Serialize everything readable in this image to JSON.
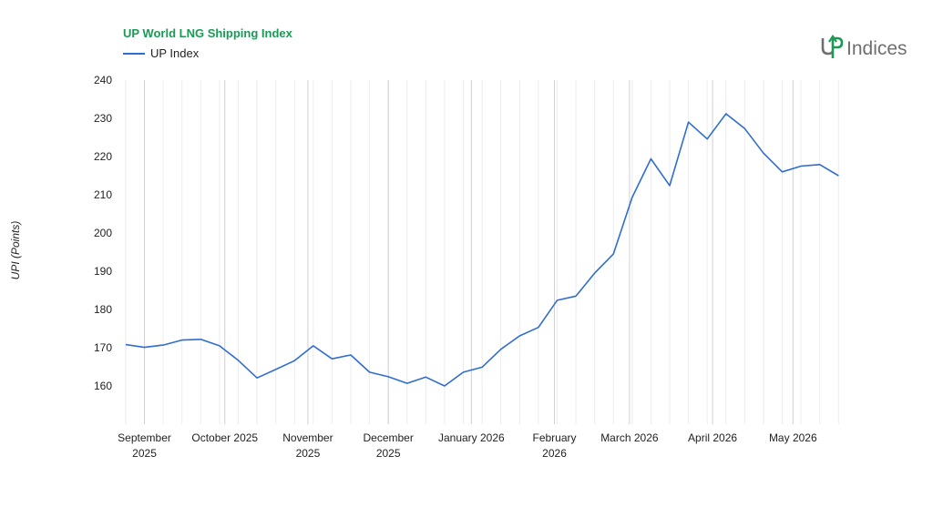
{
  "chart_data": {
    "type": "line",
    "title": "UP World LNG Shipping Index",
    "xlabel": "",
    "ylabel": "UPI (Points)",
    "ylim": [
      150,
      240
    ],
    "yticks": [
      160,
      170,
      180,
      190,
      200,
      210,
      220,
      230,
      240
    ],
    "grid": true,
    "legend": "top-left",
    "x_tick_labels": [
      {
        "date": "2025-09-01",
        "lines": [
          "September",
          "2025"
        ]
      },
      {
        "date": "2025-10-01",
        "lines": [
          "October 2025"
        ]
      },
      {
        "date": "2025-11-01",
        "lines": [
          "November",
          "2025"
        ]
      },
      {
        "date": "2025-12-01",
        "lines": [
          "December",
          "2025"
        ]
      },
      {
        "date": "2026-01-01",
        "lines": [
          "January 2026"
        ]
      },
      {
        "date": "2026-02-01",
        "lines": [
          "February",
          "2026"
        ]
      },
      {
        "date": "2026-03-01",
        "lines": [
          "March 2026"
        ]
      },
      {
        "date": "2026-04-01",
        "lines": [
          "April 2026"
        ]
      },
      {
        "date": "2026-05-01",
        "lines": [
          "May 2026"
        ]
      }
    ],
    "series": [
      {
        "name": "UP Index",
        "color": "#2f6dd0",
        "points": [
          {
            "x": "2025-08-25",
            "y": 170.8
          },
          {
            "x": "2025-09-01",
            "y": 170.1
          },
          {
            "x": "2025-09-08",
            "y": 170.7
          },
          {
            "x": "2025-09-15",
            "y": 172.0
          },
          {
            "x": "2025-09-22",
            "y": 172.2
          },
          {
            "x": "2025-09-29",
            "y": 170.5
          },
          {
            "x": "2025-10-06",
            "y": 166.7
          },
          {
            "x": "2025-10-13",
            "y": 162.1
          },
          {
            "x": "2025-10-20",
            "y": 164.3
          },
          {
            "x": "2025-10-27",
            "y": 166.6
          },
          {
            "x": "2025-11-03",
            "y": 170.5
          },
          {
            "x": "2025-11-10",
            "y": 167.1
          },
          {
            "x": "2025-11-17",
            "y": 168.1
          },
          {
            "x": "2025-11-24",
            "y": 163.6
          },
          {
            "x": "2025-12-01",
            "y": 162.4
          },
          {
            "x": "2025-12-08",
            "y": 160.7
          },
          {
            "x": "2025-12-15",
            "y": 162.3
          },
          {
            "x": "2025-12-22",
            "y": 160.0
          },
          {
            "x": "2025-12-29",
            "y": 163.6
          },
          {
            "x": "2026-01-05",
            "y": 164.9
          },
          {
            "x": "2026-01-12",
            "y": 169.6
          },
          {
            "x": "2026-01-19",
            "y": 173.1
          },
          {
            "x": "2026-01-26",
            "y": 175.3
          },
          {
            "x": "2026-02-02",
            "y": 182.4
          },
          {
            "x": "2026-02-09",
            "y": 183.5
          },
          {
            "x": "2026-02-16",
            "y": 189.5
          },
          {
            "x": "2026-02-23",
            "y": 194.5
          },
          {
            "x": "2026-03-02",
            "y": 209.3
          },
          {
            "x": "2026-03-09",
            "y": 219.4
          },
          {
            "x": "2026-03-16",
            "y": 212.4
          },
          {
            "x": "2026-03-23",
            "y": 229.0
          },
          {
            "x": "2026-03-30",
            "y": 224.6
          },
          {
            "x": "2026-04-06",
            "y": 231.2
          },
          {
            "x": "2026-04-13",
            "y": 227.3
          },
          {
            "x": "2026-04-20",
            "y": 220.9
          },
          {
            "x": "2026-04-27",
            "y": 216.0
          },
          {
            "x": "2026-05-04",
            "y": 217.5
          },
          {
            "x": "2026-05-11",
            "y": 217.9
          },
          {
            "x": "2026-05-18",
            "y": 215.0
          }
        ]
      }
    ]
  },
  "logo": {
    "text": "Indices"
  }
}
